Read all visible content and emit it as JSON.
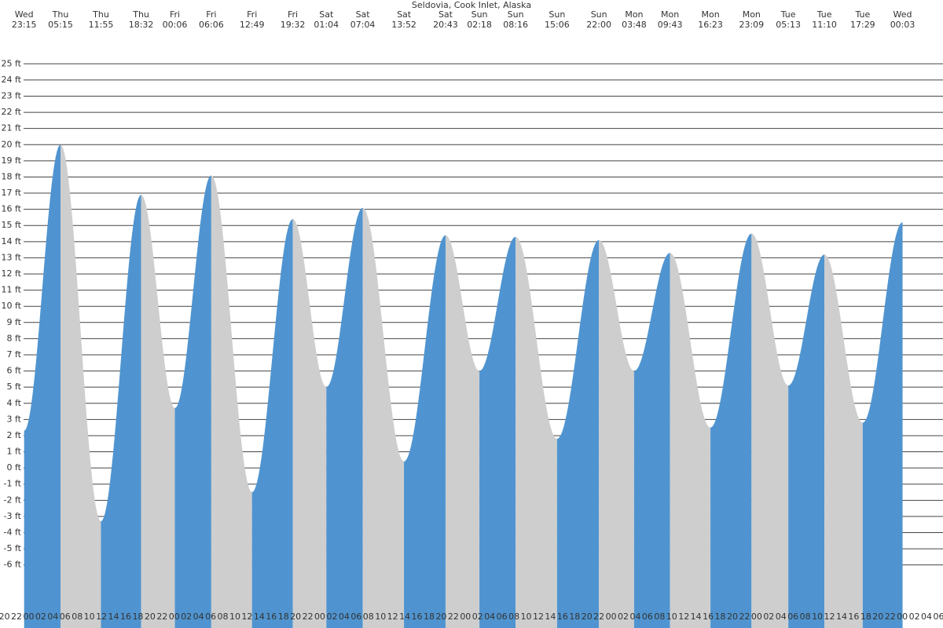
{
  "chart_data": {
    "type": "tide",
    "title": "Seldovia, Cook Inlet, Alaska",
    "days": [
      "Wed",
      "Thu",
      "Thu",
      "Thu",
      "Fri",
      "Fri",
      "Fri",
      "Fri",
      "Sat",
      "Sat",
      "Sat",
      "Sat",
      "Sun",
      "Sun",
      "Sun",
      "Sun",
      "Mon",
      "Mon",
      "Mon",
      "Mon",
      "Tue",
      "Tue",
      "Tue",
      "Wed"
    ],
    "times": [
      "23:15",
      "05:15",
      "11:55",
      "18:32",
      "00:06",
      "06:06",
      "12:49",
      "19:32",
      "01:04",
      "07:04",
      "13:52",
      "20:43",
      "02:18",
      "08:16",
      "15:06",
      "22:00",
      "03:48",
      "09:43",
      "16:23",
      "23:09",
      "05:13",
      "11:10",
      "17:29",
      "00:03"
    ],
    "values": [
      2.3,
      20.0,
      -3.3,
      16.9,
      3.7,
      18.1,
      -1.5,
      15.4,
      5.0,
      16.1,
      0.4,
      14.4,
      6.0,
      14.3,
      1.8,
      14.1,
      6.0,
      13.3,
      2.5,
      14.5,
      5.1,
      13.2,
      2.8,
      15.2
    ],
    "rising_color": "#4f94d0",
    "falling_color": "#cecece",
    "grid": true,
    "ylim": [
      -9.9,
      25.5
    ],
    "yticks": [
      {
        "value": -6,
        "label": "-6 ft"
      },
      {
        "value": -5,
        "label": "-5 ft"
      },
      {
        "value": -4,
        "label": "-4 ft"
      },
      {
        "value": -3,
        "label": "-3 ft"
      },
      {
        "value": -2,
        "label": "-2 ft"
      },
      {
        "value": -1,
        "label": "-1 ft"
      },
      {
        "value": 0,
        "label": "0 ft"
      },
      {
        "value": 1,
        "label": "1 ft"
      },
      {
        "value": 2,
        "label": "2 ft"
      },
      {
        "value": 3,
        "label": "3 ft"
      },
      {
        "value": 4,
        "label": "4 ft"
      },
      {
        "value": 5,
        "label": "5 ft"
      },
      {
        "value": 6,
        "label": "6 ft"
      },
      {
        "value": 7,
        "label": "7 ft"
      },
      {
        "value": 8,
        "label": "8 ft"
      },
      {
        "value": 9,
        "label": "9 ft"
      },
      {
        "value": 10,
        "label": "10 ft"
      },
      {
        "value": 11,
        "label": "11 ft"
      },
      {
        "value": 12,
        "label": "12 ft"
      },
      {
        "value": 13,
        "label": "13 ft"
      },
      {
        "value": 14,
        "label": "14 ft"
      },
      {
        "value": 15,
        "label": "15 ft"
      },
      {
        "value": 16,
        "label": "16 ft"
      },
      {
        "value": 17,
        "label": "17 ft"
      },
      {
        "value": 18,
        "label": "18 ft"
      },
      {
        "value": 19,
        "label": "19 ft"
      },
      {
        "value": 20,
        "label": "20 ft"
      },
      {
        "value": 21,
        "label": "21 ft"
      },
      {
        "value": 22,
        "label": "22 ft"
      },
      {
        "value": 23,
        "label": "23 ft"
      },
      {
        "value": 24,
        "label": "24 ft"
      },
      {
        "value": 25,
        "label": "25 ft"
      }
    ],
    "hour_labels": [
      "20",
      "22",
      "00",
      "02",
      "04",
      "06",
      "08",
      "10",
      "12",
      "14",
      "16",
      "18",
      "20",
      "22",
      "00",
      "02",
      "04",
      "06",
      "08",
      "10",
      "12",
      "14",
      "16",
      "18",
      "20",
      "22",
      "00",
      "02",
      "04",
      "06",
      "08",
      "10",
      "12",
      "14",
      "16",
      "18",
      "20",
      "22",
      "00",
      "02",
      "04",
      "06",
      "08",
      "10",
      "12",
      "14",
      "16",
      "18",
      "20",
      "22",
      "00",
      "02",
      "04",
      "06",
      "08",
      "10",
      "12",
      "14",
      "16",
      "18",
      "20",
      "22",
      "00",
      "02",
      "04",
      "06",
      "08",
      "10",
      "12",
      "14",
      "16",
      "18",
      "20",
      "22",
      "00",
      "02",
      "04",
      "06"
    ]
  }
}
